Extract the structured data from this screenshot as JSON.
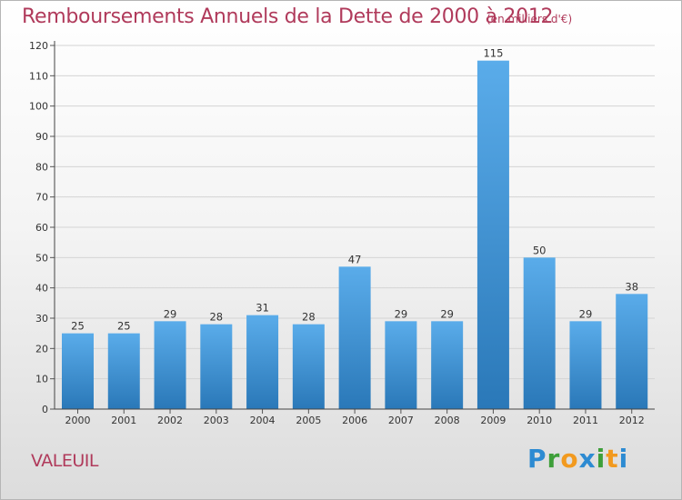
{
  "header": {
    "title": "Remboursements Annuels de la Dette de 2000 à 2012",
    "subtitle": "(en milliers d'€)"
  },
  "commune": "VALEUIL",
  "brand": {
    "letters": [
      "P",
      "r",
      "o",
      "x",
      "i",
      "t",
      "i"
    ],
    "colors": [
      "#2d8bd2",
      "#3e9f3a",
      "#f29a1f",
      "#2d8bd2",
      "#3e9f3a",
      "#f29a1f",
      "#2d8bd2"
    ]
  },
  "colors": {
    "bar_top": "#5aacea",
    "bar_bottom": "#2a78b8",
    "title": "#b03a5b",
    "grid": "#d4d4d4"
  },
  "chart_data": {
    "type": "bar",
    "title": "Remboursements Annuels de la Dette de 2000 à 2012",
    "subtitle": "(en milliers d'€)",
    "categories": [
      "2000",
      "2001",
      "2002",
      "2003",
      "2004",
      "2005",
      "2006",
      "2007",
      "2008",
      "2009",
      "2010",
      "2011",
      "2012"
    ],
    "values": [
      25,
      25,
      29,
      28,
      31,
      28,
      47,
      29,
      29,
      115,
      50,
      29,
      38
    ],
    "ylim": [
      0,
      120
    ],
    "yticks": [
      0,
      10,
      20,
      30,
      40,
      50,
      60,
      70,
      80,
      90,
      100,
      110,
      120
    ],
    "grid": true,
    "legend": "none"
  }
}
